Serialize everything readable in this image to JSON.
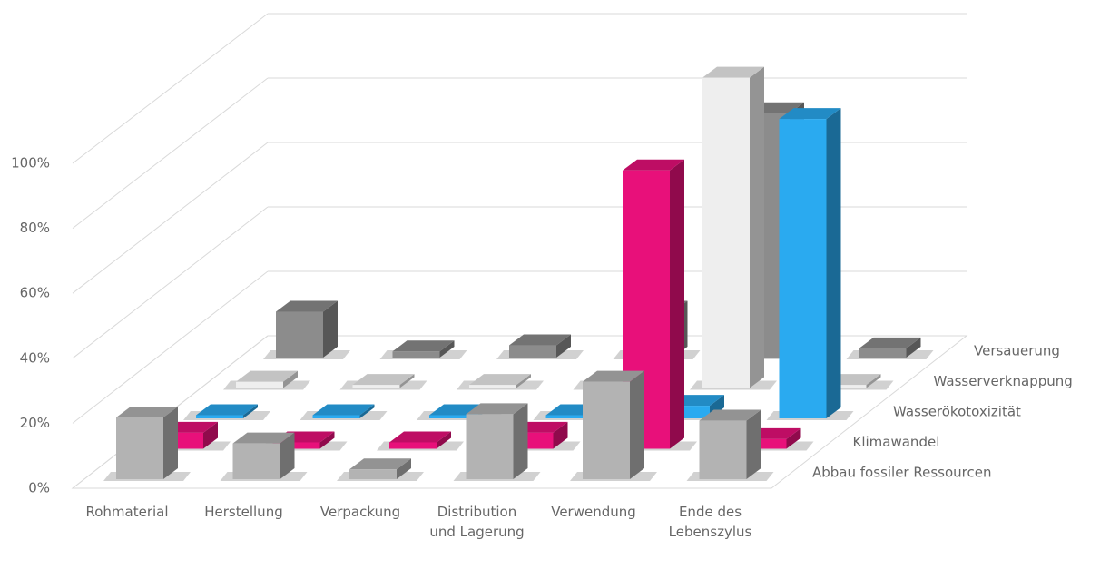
{
  "chart_data": {
    "type": "bar3d",
    "categories": [
      "Rohmaterial",
      "Herstellung",
      "Verpackung",
      "Distribution und Lagerung",
      "Verwendung",
      "Ende des Lebenszylus"
    ],
    "series": [
      {
        "name": "Abbau fossiler Ressourcen",
        "color": "#b3b3b3",
        "values": [
          19,
          11,
          3,
          20,
          30,
          18
        ]
      },
      {
        "name": "Klimawandel",
        "color": "#e8107a",
        "values": [
          5,
          2,
          2,
          5,
          87,
          3
        ]
      },
      {
        "name": "Wasserökotoxizität",
        "color": "#2aaaf0",
        "values": [
          1,
          1,
          1,
          1,
          4,
          95
        ]
      },
      {
        "name": "Wasserverknappung",
        "color": "#eeeeee",
        "values": [
          2,
          1,
          1,
          1,
          100,
          1
        ]
      },
      {
        "name": "Versauerung",
        "color": "#8c8c8c",
        "values": [
          15,
          2,
          4,
          15,
          80,
          3
        ]
      }
    ],
    "ylim": [
      0,
      100
    ],
    "yticks": [
      {
        "value": 0,
        "label": "0%"
      },
      {
        "value": 20,
        "label": "20%"
      },
      {
        "value": 40,
        "label": "40%"
      },
      {
        "value": 60,
        "label": "60%"
      },
      {
        "value": 80,
        "label": "80%"
      },
      {
        "value": 100,
        "label": "100%"
      }
    ],
    "grid": true
  }
}
